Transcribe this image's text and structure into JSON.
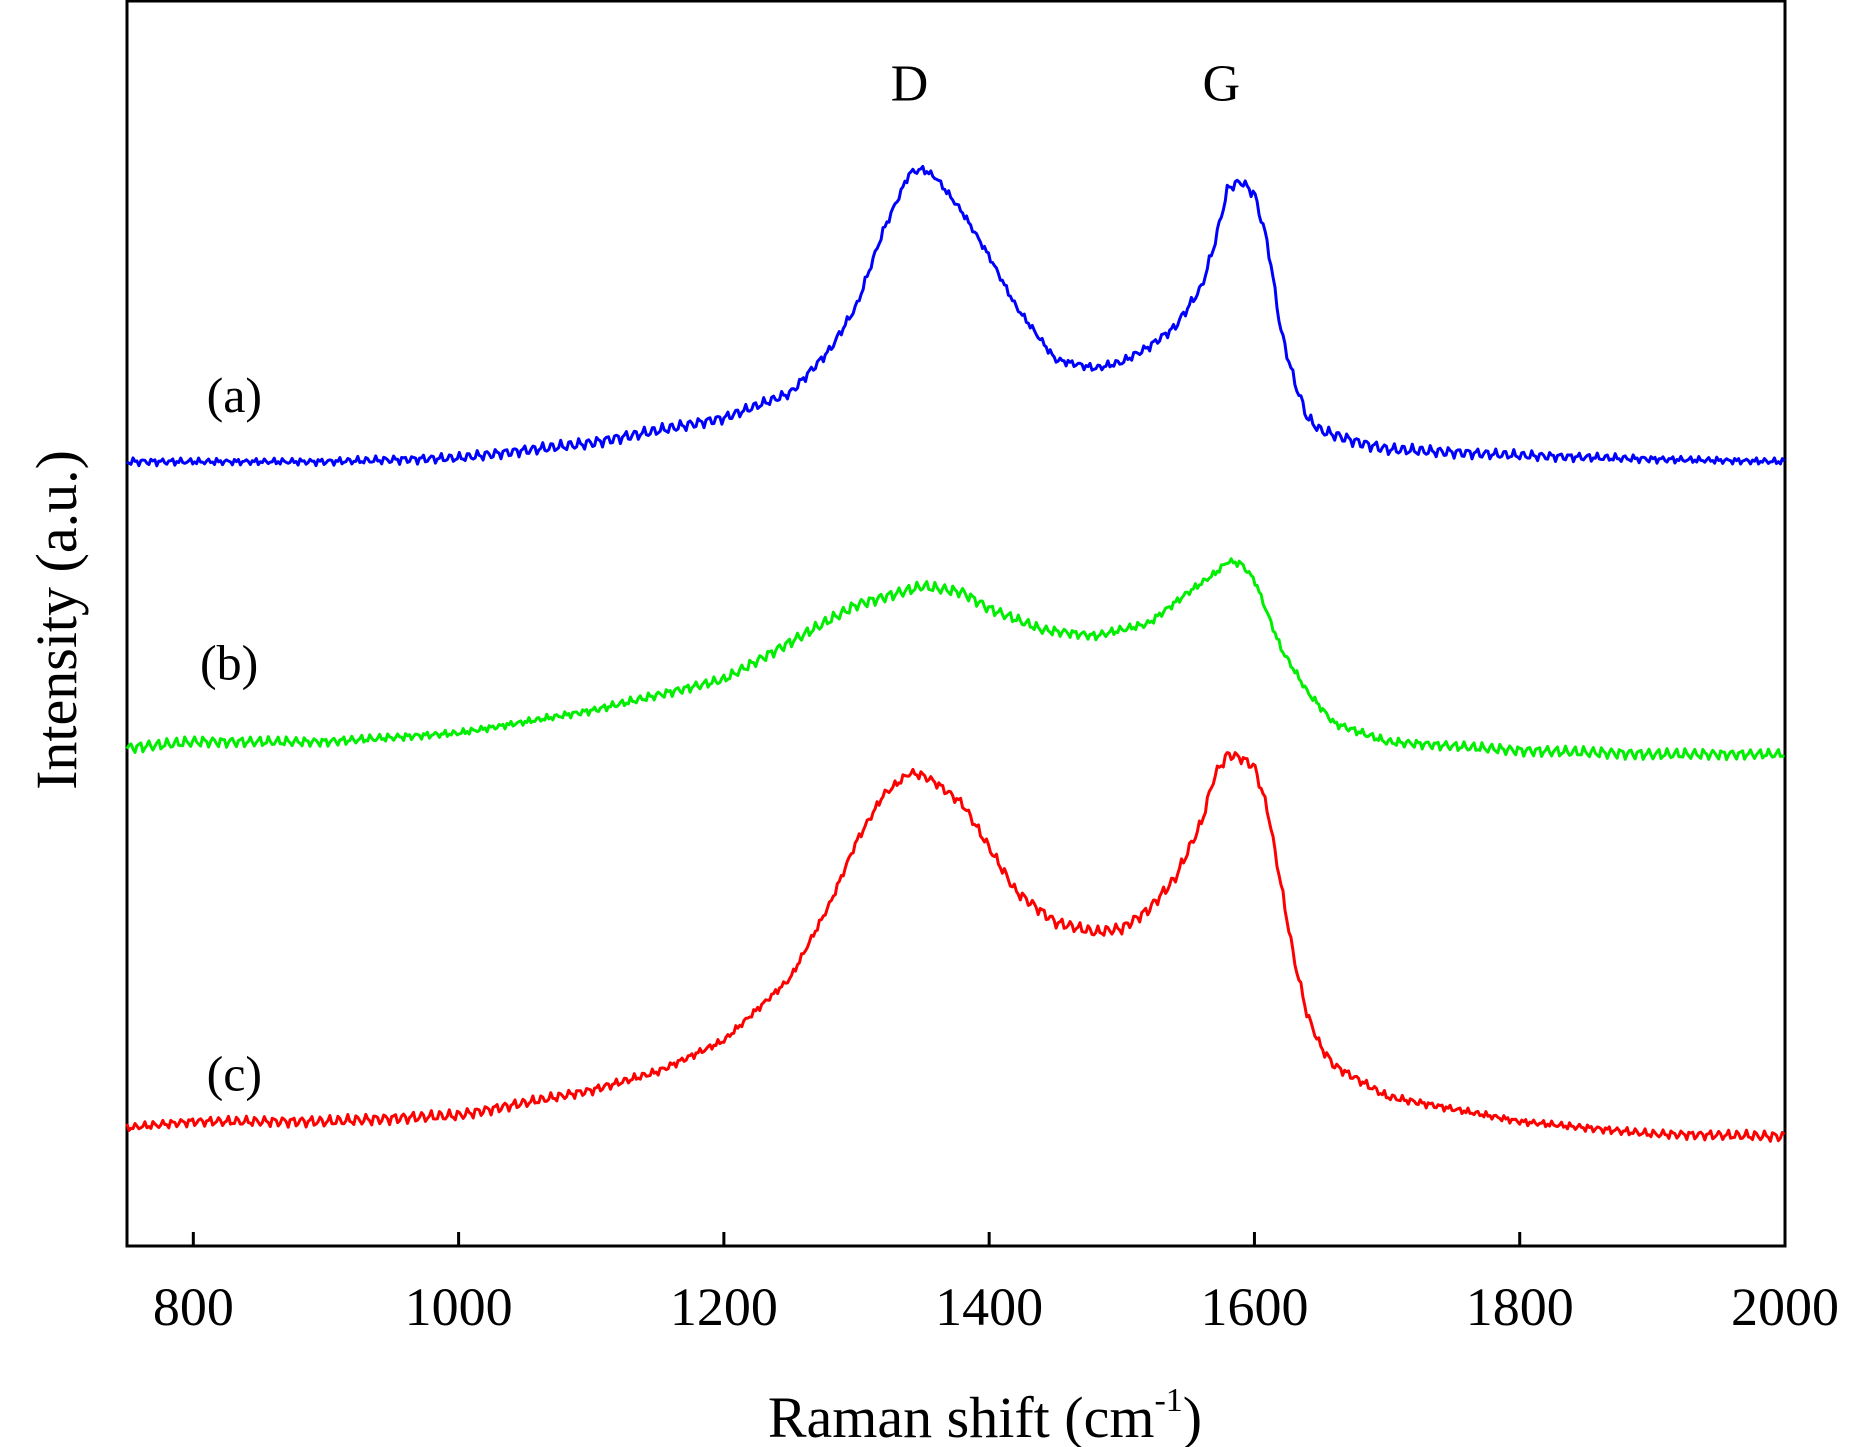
{
  "chart_data": {
    "type": "line",
    "title": "",
    "xlabel": "Raman shift (cm",
    "xlabel_superscript": "-1",
    "xlabel_suffix": ")",
    "ylabel": "Intensity (a.u.)",
    "xlim": [
      750,
      2000
    ],
    "ylim": [
      0,
      10
    ],
    "yticks_shown": false,
    "grid": false,
    "x_ticks": [
      800,
      1000,
      1200,
      1400,
      1600,
      1800,
      2000
    ],
    "x_tick_labels": [
      "800",
      "1000",
      "1200",
      "1400",
      "1600",
      "1800",
      "2000"
    ],
    "annotations": [
      {
        "text": "D",
        "x": 1340,
        "y": 9.2
      },
      {
        "text": "G",
        "x": 1575,
        "y": 9.2
      }
    ],
    "series": [
      {
        "name": "(a)",
        "label_x": 810,
        "label_y": 6.7,
        "color": "#0000ff",
        "x": [
          750,
          800,
          900,
          1000,
          1100,
          1200,
          1250,
          1280,
          1300,
          1320,
          1340,
          1350,
          1360,
          1380,
          1400,
          1420,
          1450,
          1480,
          1500,
          1520,
          1540,
          1560,
          1570,
          1580,
          1590,
          1600,
          1610,
          1620,
          1630,
          1640,
          1650,
          1680,
          1700,
          1800,
          1900,
          2000
        ],
        "values": [
          6.3,
          6.3,
          6.3,
          6.33,
          6.45,
          6.65,
          6.85,
          7.2,
          7.55,
          8.15,
          8.62,
          8.65,
          8.58,
          8.3,
          7.95,
          7.55,
          7.12,
          7.05,
          7.1,
          7.22,
          7.38,
          7.7,
          8.05,
          8.5,
          8.55,
          8.45,
          8.05,
          7.35,
          6.95,
          6.65,
          6.55,
          6.45,
          6.4,
          6.35,
          6.32,
          6.3
        ]
      },
      {
        "name": "(b)",
        "label_x": 805,
        "label_y": 4.55,
        "color": "#00ee00",
        "x": [
          750,
          800,
          900,
          1000,
          1100,
          1200,
          1250,
          1300,
          1350,
          1380,
          1400,
          1440,
          1480,
          1520,
          1550,
          1570,
          1580,
          1590,
          1600,
          1620,
          1640,
          1660,
          1700,
          1800,
          1900,
          2000
        ],
        "values": [
          4.0,
          4.05,
          4.05,
          4.12,
          4.3,
          4.55,
          4.85,
          5.15,
          5.3,
          5.25,
          5.12,
          4.95,
          4.9,
          5.0,
          5.25,
          5.4,
          5.5,
          5.48,
          5.35,
          4.8,
          4.45,
          4.2,
          4.05,
          3.98,
          3.95,
          3.95
        ]
      },
      {
        "name": "(c)",
        "label_x": 810,
        "label_y": 1.25,
        "color": "#ff0000",
        "x": [
          750,
          800,
          900,
          1000,
          1100,
          1150,
          1200,
          1250,
          1280,
          1300,
          1320,
          1340,
          1350,
          1360,
          1380,
          1400,
          1420,
          1450,
          1480,
          1500,
          1520,
          1540,
          1560,
          1570,
          1580,
          1590,
          1600,
          1610,
          1620,
          1630,
          1640,
          1650,
          1660,
          1700,
          1800,
          1900,
          2000
        ],
        "values": [
          0.95,
          1.0,
          1.0,
          1.05,
          1.25,
          1.4,
          1.65,
          2.15,
          2.75,
          3.25,
          3.62,
          3.8,
          3.78,
          3.72,
          3.55,
          3.2,
          2.85,
          2.6,
          2.52,
          2.55,
          2.7,
          2.95,
          3.4,
          3.78,
          3.95,
          3.92,
          3.85,
          3.5,
          2.9,
          2.3,
          1.85,
          1.6,
          1.45,
          1.2,
          1.0,
          0.9,
          0.88
        ]
      }
    ]
  }
}
